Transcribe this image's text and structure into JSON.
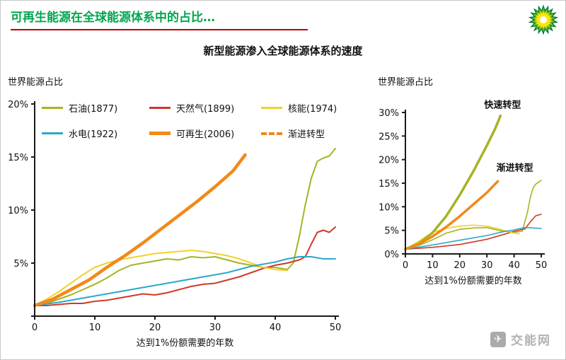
{
  "page": {
    "title": "可再生能源在全球能源体系中的占比…",
    "subtitle": "新型能源渗入全球能源体系的速度",
    "watermark_text": "交能网",
    "logo": "bp-helios-logo"
  },
  "colors": {
    "title_green": "#00A64F",
    "underline_red": "#C00000",
    "oil_olive": "#A7B325",
    "gas_red": "#CF3A28",
    "nuclear_yellow": "#F2D12C",
    "hydro_blue": "#2CA8CA",
    "renewable_orange": "#F1891A",
    "axis_black": "#1a1a1a",
    "watermark_gray": "#b3b3b3"
  },
  "chart_data": [
    {
      "type": "line",
      "name": "historical-energy-penetration",
      "title": "世界能源占比",
      "xlabel": "达到1%份额需要的年数",
      "xlim": [
        0,
        50
      ],
      "ylim": [
        0,
        20
      ],
      "xticks": [
        0,
        10,
        20,
        30,
        40,
        50
      ],
      "yticks": [
        {
          "v": 0,
          "label": ""
        },
        {
          "v": 5,
          "label": "5%"
        },
        {
          "v": 10,
          "label": "10%"
        },
        {
          "v": 15,
          "label": "15%"
        },
        {
          "v": 20,
          "label": "20%"
        }
      ],
      "grid": false,
      "legend_position": "top",
      "legend": [
        {
          "label": "石油(1877)",
          "color": "#A7B325",
          "thickness": 3,
          "dashed": false
        },
        {
          "label": "天然气(1899)",
          "color": "#CF3A28",
          "thickness": 3,
          "dashed": false
        },
        {
          "label": "核能(1974)",
          "color": "#F2D12C",
          "thickness": 3,
          "dashed": false
        },
        {
          "label": "水电(1922)",
          "color": "#2CA8CA",
          "thickness": 3,
          "dashed": false
        },
        {
          "label": "可再生(2006)",
          "color": "#F1891A",
          "thickness": 5,
          "dashed": false
        },
        {
          "label": "渐进转型",
          "color": "#F1891A",
          "thickness": 4,
          "dashed": true
        }
      ],
      "series": [
        {
          "id": "oil",
          "name": "石油(1877)",
          "color": "#A7B325",
          "width": 2,
          "points": [
            [
              0,
              1
            ],
            [
              2,
              1.2
            ],
            [
              4,
              1.6
            ],
            [
              6,
              2.0
            ],
            [
              8,
              2.5
            ],
            [
              10,
              3.0
            ],
            [
              12,
              3.6
            ],
            [
              14,
              4.3
            ],
            [
              16,
              4.8
            ],
            [
              18,
              5.0
            ],
            [
              20,
              5.2
            ],
            [
              22,
              5.4
            ],
            [
              24,
              5.3
            ],
            [
              26,
              5.6
            ],
            [
              28,
              5.5
            ],
            [
              30,
              5.6
            ],
            [
              32,
              5.3
            ],
            [
              34,
              5.0
            ],
            [
              36,
              4.8
            ],
            [
              38,
              4.6
            ],
            [
              40,
              4.6
            ],
            [
              42,
              4.4
            ],
            [
              43,
              5.0
            ],
            [
              44,
              7.5
            ],
            [
              45,
              10.5
            ],
            [
              46,
              13.0
            ],
            [
              47,
              14.6
            ],
            [
              48,
              14.9
            ],
            [
              49,
              15.1
            ],
            [
              50,
              15.8
            ]
          ]
        },
        {
          "id": "gas",
          "name": "天然气(1899)",
          "color": "#CF3A28",
          "width": 2,
          "points": [
            [
              0,
              1
            ],
            [
              2,
              1.0
            ],
            [
              4,
              1.1
            ],
            [
              6,
              1.2
            ],
            [
              8,
              1.2
            ],
            [
              10,
              1.4
            ],
            [
              12,
              1.5
            ],
            [
              14,
              1.7
            ],
            [
              16,
              1.9
            ],
            [
              18,
              2.1
            ],
            [
              20,
              2.0
            ],
            [
              22,
              2.2
            ],
            [
              24,
              2.5
            ],
            [
              26,
              2.8
            ],
            [
              28,
              3.0
            ],
            [
              30,
              3.1
            ],
            [
              32,
              3.4
            ],
            [
              34,
              3.7
            ],
            [
              36,
              4.1
            ],
            [
              38,
              4.5
            ],
            [
              40,
              4.8
            ],
            [
              42,
              5.0
            ],
            [
              44,
              5.3
            ],
            [
              45,
              5.6
            ],
            [
              46,
              6.8
            ],
            [
              47,
              7.9
            ],
            [
              48,
              8.1
            ],
            [
              49,
              7.9
            ],
            [
              50,
              8.4
            ]
          ]
        },
        {
          "id": "nuclear",
          "name": "核能(1974)",
          "color": "#F2D12C",
          "width": 2,
          "points": [
            [
              0,
              1
            ],
            [
              2,
              1.6
            ],
            [
              4,
              2.3
            ],
            [
              6,
              3.1
            ],
            [
              8,
              3.9
            ],
            [
              10,
              4.6
            ],
            [
              12,
              5.0
            ],
            [
              14,
              5.3
            ],
            [
              16,
              5.5
            ],
            [
              18,
              5.7
            ],
            [
              20,
              5.9
            ],
            [
              22,
              6.0
            ],
            [
              24,
              6.1
            ],
            [
              26,
              6.2
            ],
            [
              28,
              6.1
            ],
            [
              30,
              5.9
            ],
            [
              32,
              5.7
            ],
            [
              34,
              5.4
            ],
            [
              36,
              5.0
            ],
            [
              38,
              4.6
            ],
            [
              40,
              4.4
            ],
            [
              42,
              4.3
            ]
          ]
        },
        {
          "id": "hydro",
          "name": "水电(1922)",
          "color": "#2CA8CA",
          "width": 2,
          "points": [
            [
              0,
              1
            ],
            [
              4,
              1.3
            ],
            [
              8,
              1.7
            ],
            [
              12,
              2.1
            ],
            [
              16,
              2.5
            ],
            [
              20,
              2.9
            ],
            [
              24,
              3.3
            ],
            [
              28,
              3.7
            ],
            [
              32,
              4.1
            ],
            [
              34,
              4.4
            ],
            [
              36,
              4.7
            ],
            [
              38,
              4.9
            ],
            [
              40,
              5.1
            ],
            [
              42,
              5.4
            ],
            [
              44,
              5.6
            ],
            [
              46,
              5.6
            ],
            [
              48,
              5.4
            ],
            [
              50,
              5.4
            ]
          ]
        },
        {
          "id": "renewable",
          "name": "可再生(2006)",
          "color": "#F1891A",
          "width": 4.5,
          "points": [
            [
              0,
              1
            ],
            [
              3,
              1.6
            ],
            [
              6,
              2.5
            ],
            [
              9,
              3.4
            ],
            [
              12,
              4.6
            ],
            [
              15,
              5.7
            ],
            [
              18,
              6.9
            ],
            [
              21,
              8.2
            ],
            [
              24,
              9.5
            ],
            [
              27,
              10.8
            ],
            [
              30,
              12.2
            ],
            [
              33,
              13.7
            ],
            [
              35,
              15.2
            ]
          ]
        }
      ]
    },
    {
      "type": "line",
      "name": "transition-scenarios",
      "title": "世界能源占比",
      "xlabel": "达到1%份额需要的年数",
      "xlim": [
        0,
        50
      ],
      "ylim": [
        0,
        30
      ],
      "xticks": [
        0,
        10,
        20,
        30,
        40,
        50
      ],
      "yticks": [
        {
          "v": 0,
          "label": "0%"
        },
        {
          "v": 5,
          "label": "5%"
        },
        {
          "v": 10,
          "label": "10%"
        },
        {
          "v": 15,
          "label": "15%"
        },
        {
          "v": 20,
          "label": "20%"
        },
        {
          "v": 25,
          "label": "25%"
        },
        {
          "v": 30,
          "label": "30%"
        }
      ],
      "grid": false,
      "annotations": [
        {
          "text": "快速转型",
          "x": 29,
          "y": 31,
          "anchor": "start"
        },
        {
          "text": "渐进转型",
          "x": 33.5,
          "y": 17.6,
          "anchor": "start"
        }
      ],
      "series": [
        {
          "id": "oil",
          "name": "石油(1877)",
          "color": "#A7B325",
          "width": 1.6,
          "points": [
            [
              0,
              1
            ],
            [
              5,
              1.8
            ],
            [
              10,
              3.0
            ],
            [
              15,
              4.4
            ],
            [
              20,
              5.2
            ],
            [
              25,
              5.5
            ],
            [
              30,
              5.6
            ],
            [
              35,
              4.9
            ],
            [
              40,
              4.6
            ],
            [
              43,
              4.8
            ],
            [
              45,
              9.0
            ],
            [
              46,
              12.0
            ],
            [
              47,
              14.0
            ],
            [
              48,
              14.8
            ],
            [
              50,
              15.6
            ]
          ]
        },
        {
          "id": "gas",
          "name": "天然气(1899)",
          "color": "#CF3A28",
          "width": 1.6,
          "points": [
            [
              0,
              1
            ],
            [
              10,
              1.4
            ],
            [
              20,
              2.0
            ],
            [
              30,
              3.1
            ],
            [
              36,
              4.1
            ],
            [
              40,
              4.8
            ],
            [
              44,
              5.3
            ],
            [
              46,
              6.8
            ],
            [
              48,
              8.1
            ],
            [
              50,
              8.4
            ]
          ]
        },
        {
          "id": "nuclear",
          "name": "核能(1974)",
          "color": "#F2D12C",
          "width": 1.6,
          "points": [
            [
              0,
              1
            ],
            [
              5,
              2.7
            ],
            [
              10,
              4.6
            ],
            [
              15,
              5.4
            ],
            [
              20,
              5.9
            ],
            [
              25,
              6.1
            ],
            [
              30,
              5.9
            ],
            [
              35,
              5.2
            ],
            [
              40,
              4.4
            ],
            [
              42,
              4.3
            ]
          ]
        },
        {
          "id": "hydro",
          "name": "水电(1922)",
          "color": "#2CA8CA",
          "width": 1.6,
          "points": [
            [
              0,
              1
            ],
            [
              10,
              1.9
            ],
            [
              20,
              2.9
            ],
            [
              30,
              3.9
            ],
            [
              36,
              4.7
            ],
            [
              40,
              5.1
            ],
            [
              44,
              5.6
            ],
            [
              47,
              5.5
            ],
            [
              50,
              5.4
            ]
          ]
        },
        {
          "id": "fast-transition",
          "name": "快速转型",
          "color": "#A7B325",
          "width": 3.5,
          "points": [
            [
              0,
              1
            ],
            [
              5,
              2.2
            ],
            [
              10,
              4.5
            ],
            [
              15,
              8.0
            ],
            [
              20,
              12.5
            ],
            [
              25,
              17.5
            ],
            [
              30,
              23.0
            ],
            [
              33,
              26.5
            ],
            [
              35,
              29.3
            ]
          ]
        },
        {
          "id": "gradual-transition",
          "name": "渐进转型",
          "color": "#F1891A",
          "width": 3.5,
          "points": [
            [
              0,
              1
            ],
            [
              5,
              2.1
            ],
            [
              10,
              3.7
            ],
            [
              15,
              5.7
            ],
            [
              20,
              8.0
            ],
            [
              25,
              10.5
            ],
            [
              30,
              13.0
            ],
            [
              34,
              15.4
            ]
          ]
        }
      ]
    }
  ]
}
